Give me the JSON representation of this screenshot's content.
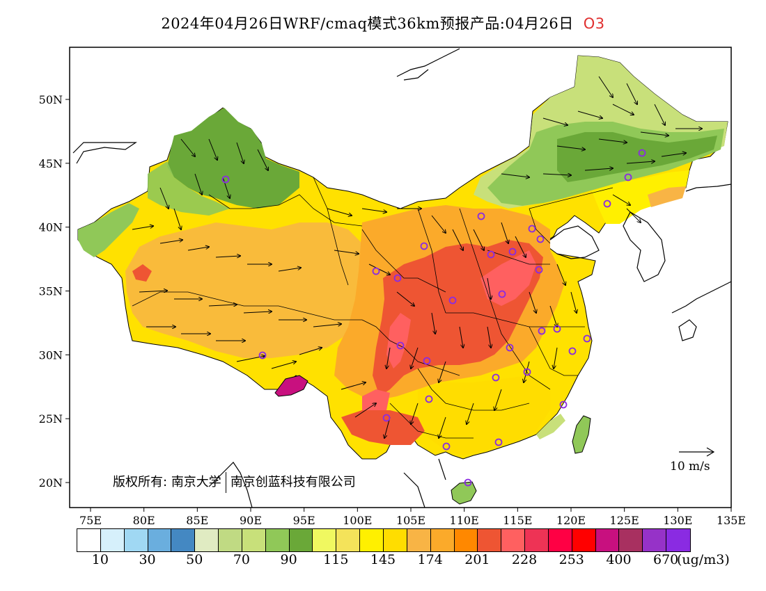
{
  "header": {
    "title": "2024年04月26日WRF/cmaq模式36km预报产品:04月26日",
    "species": "O3"
  },
  "map": {
    "lon_range": [
      73,
      135
    ],
    "lat_range": [
      18,
      54
    ],
    "lon_ticks": [
      "75E",
      "80E",
      "85E",
      "90E",
      "95E",
      "100E",
      "105E",
      "110E",
      "115E",
      "120E",
      "125E",
      "130E",
      "135E"
    ],
    "lat_ticks": [
      "20N",
      "25N",
      "30N",
      "35N",
      "40N",
      "45N",
      "50N"
    ]
  },
  "copyright": {
    "prefix": "版权所有:",
    "org1": "南京大学",
    "org2": "南京创蓝科技有限公司"
  },
  "wind_reference": {
    "label": "10 m/s"
  },
  "legend": {
    "colors": [
      "#ffffff",
      "#d6f0fb",
      "#a0d8f3",
      "#6aaede",
      "#4488c2",
      "#e0ebc2",
      "#c0da83",
      "#c8e07a",
      "#90c858",
      "#6aa838",
      "#f0f860",
      "#f4e35a",
      "#fff000",
      "#ffdd00",
      "#f8b445",
      "#fbaa2a",
      "#ff8800",
      "#ee5533",
      "#ff6060",
      "#ee3355",
      "#ff0044",
      "#ff0000",
      "#c8107f",
      "#a83060",
      "#9632c8",
      "#8a2be2"
    ],
    "labels": [
      "10",
      "30",
      "50",
      "70",
      "90",
      "115",
      "145",
      "174",
      "201",
      "228",
      "253",
      "400",
      "670"
    ],
    "unit": "(ug/m3)"
  },
  "city_marker_color": "#8a2be2"
}
